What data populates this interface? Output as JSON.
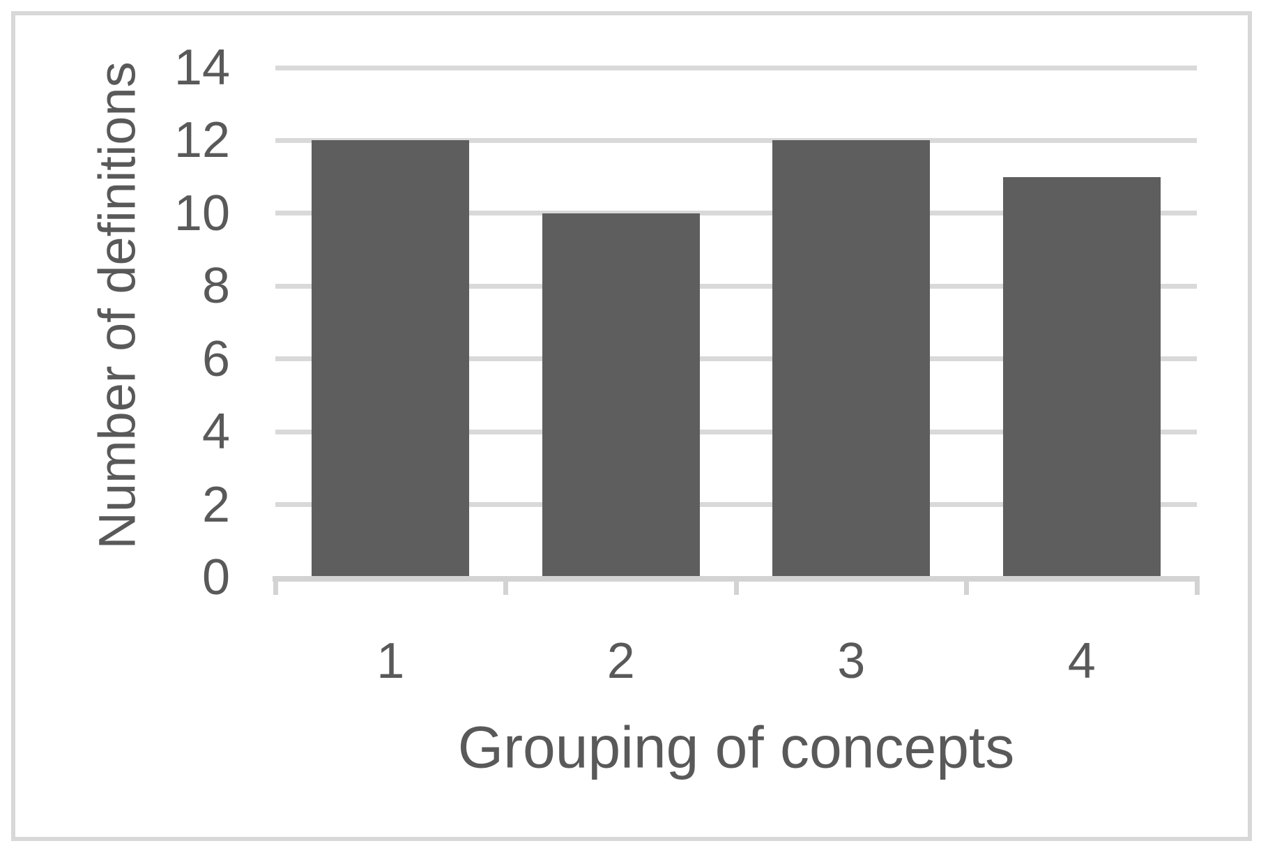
{
  "figure": {
    "background": "#ffffff",
    "border_color": "#d8d8d8"
  },
  "chart_data": {
    "type": "bar",
    "categories": [
      "1",
      "2",
      "3",
      "4"
    ],
    "values": [
      12,
      10,
      12,
      11
    ],
    "title": "",
    "xlabel": "Grouping of concepts",
    "ylabel": "Number of definitions",
    "ylim": [
      0,
      14
    ],
    "yticks": [
      0,
      2,
      4,
      6,
      8,
      10,
      12,
      14
    ],
    "grid": "horizontal",
    "legend": "none",
    "bar_color": "#5e5e5e",
    "gridline_color": "#d9d9d9",
    "axis_line_color": "#d3d3d3",
    "text_color": "#595959"
  }
}
